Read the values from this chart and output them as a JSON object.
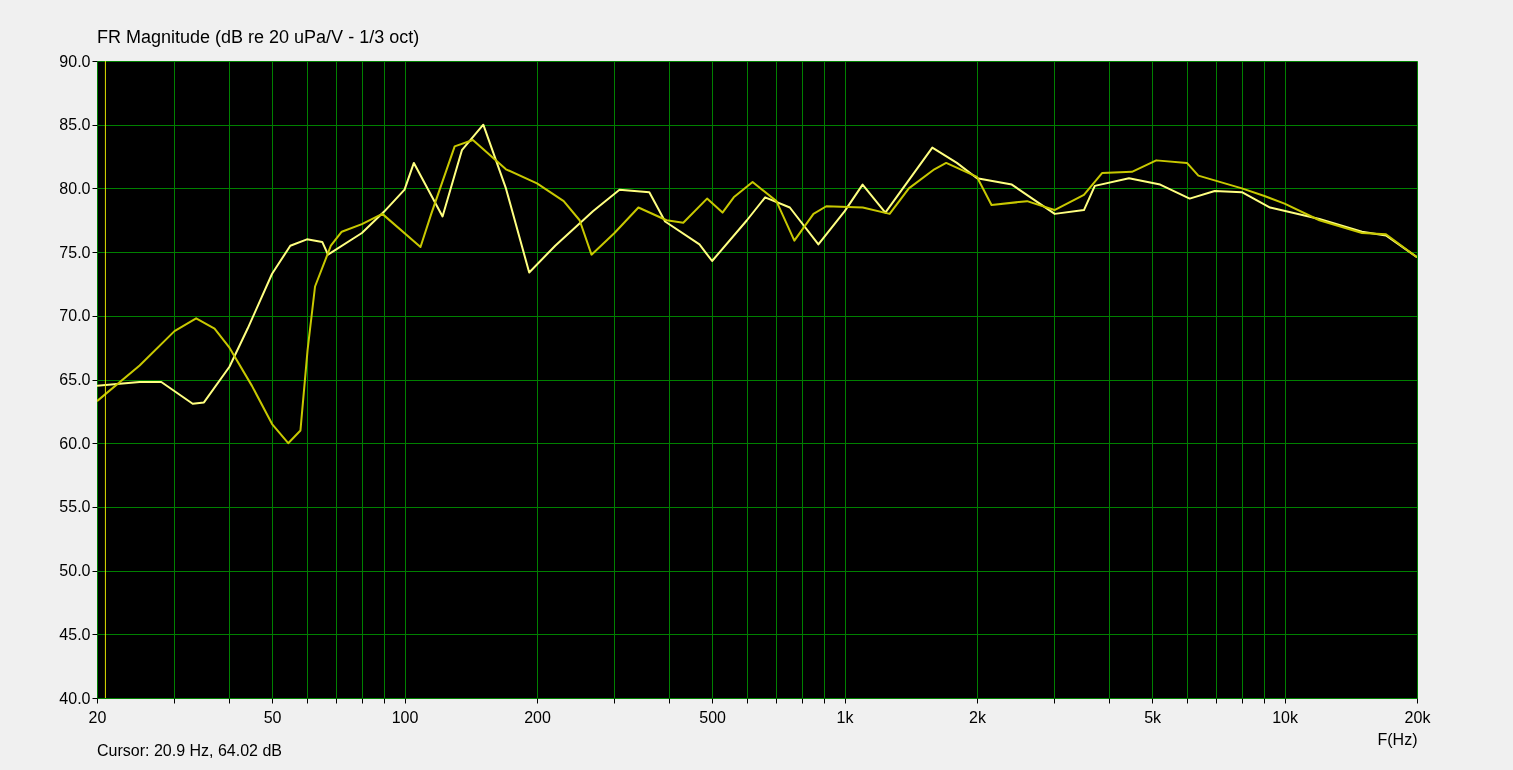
{
  "chart_data": {
    "type": "line",
    "title": "FR Magnitude (dB re 20 uPa/V - 1/3 oct)",
    "xlabel": "F(Hz)",
    "annotations": [
      "Cursor: 20.9 Hz, 64.02 dB"
    ],
    "log": "x",
    "grid": true,
    "legend": false,
    "marker": "none",
    "line_style": "solid",
    "xlim": [
      20,
      20000
    ],
    "xticks": [
      20,
      {
        "value": 30,
        "label": null
      },
      {
        "value": 40,
        "label": null
      },
      50,
      {
        "value": 60,
        "label": null
      },
      {
        "value": 70,
        "label": null
      },
      {
        "value": 80,
        "label": null
      },
      {
        "value": 90,
        "label": null
      },
      100,
      200,
      {
        "value": 300,
        "label": null
      },
      {
        "value": 400,
        "label": null
      },
      500,
      {
        "value": 600,
        "label": null
      },
      {
        "value": 700,
        "label": null
      },
      {
        "value": 800,
        "label": null
      },
      {
        "value": 900,
        "label": null
      },
      {
        "value": 1000,
        "label": "1k"
      },
      {
        "value": 2000,
        "label": "2k"
      },
      {
        "value": 3000,
        "label": null
      },
      {
        "value": 4000,
        "label": null
      },
      {
        "value": 5000,
        "label": "5k"
      },
      {
        "value": 6000,
        "label": null
      },
      {
        "value": 7000,
        "label": null
      },
      {
        "value": 8000,
        "label": null
      },
      {
        "value": 9000,
        "label": null
      },
      {
        "value": 10000,
        "label": "10k"
      },
      {
        "value": 20000,
        "label": "20k"
      }
    ],
    "ylim": [
      40,
      90
    ],
    "yticks": [
      {
        "value": 40,
        "label": "40.0"
      },
      {
        "value": 45,
        "label": "45.0"
      },
      {
        "value": 50,
        "label": "50.0"
      },
      {
        "value": 55,
        "label": "55.0"
      },
      {
        "value": 60,
        "label": "60.0"
      },
      {
        "value": 65,
        "label": "65.0"
      },
      {
        "value": 70,
        "label": "70.0"
      },
      {
        "value": 75,
        "label": "75.0"
      },
      {
        "value": 80,
        "label": "80.0"
      },
      {
        "value": 85,
        "label": "85.0"
      },
      {
        "value": 90,
        "label": "90.0"
      }
    ],
    "ref_lines": [
      {
        "axis": "x",
        "value": 20.9,
        "color": "#e0e000"
      }
    ],
    "series": [
      {
        "color": "#ffff80",
        "x": [
          20,
          25,
          28,
          33,
          35,
          40,
          44,
          50,
          55,
          60,
          65,
          67,
          80,
          90,
          100,
          105,
          122,
          135,
          151,
          170,
          192,
          220,
          268,
          308,
          360,
          391,
          468,
          500,
          600,
          660,
          751,
          872,
          1000,
          1099,
          1238,
          1583,
          1800,
          2000,
          2400,
          3004,
          3500,
          3705,
          4430,
          5216,
          6087,
          6939,
          8000,
          9270,
          12000,
          15000,
          17000,
          20000
        ],
        "values": [
          64.5,
          64.8,
          64.8,
          63.1,
          63.2,
          66.0,
          69.0,
          73.3,
          75.5,
          76.0,
          75.8,
          74.8,
          76.5,
          78.2,
          79.9,
          82.0,
          77.8,
          83.0,
          85.0,
          80.0,
          73.4,
          75.5,
          78.2,
          79.9,
          79.7,
          77.4,
          75.6,
          74.3,
          77.5,
          79.3,
          78.5,
          75.6,
          78.2,
          80.3,
          78.1,
          83.2,
          82.0,
          80.8,
          80.3,
          78.0,
          78.3,
          80.2,
          80.8,
          80.3,
          79.2,
          79.8,
          79.7,
          78.5,
          77.6,
          76.6,
          76.3,
          74.6
        ]
      },
      {
        "color": "#c8c800",
        "x": [
          20,
          25,
          30,
          33.6,
          37,
          40,
          45,
          50,
          54.4,
          58,
          60.2,
          62.6,
          68,
          72,
          80,
          89,
          108.7,
          115,
          130,
          143,
          170,
          200,
          230,
          250,
          266,
          300,
          340,
          394,
          430,
          487,
          528,
          560,
          618,
          700,
          769,
          850,
          909,
          1100,
          1266,
          1400,
          1600,
          1702,
          2000,
          2158,
          2600,
          3000,
          3500,
          3848,
          4500,
          5110,
          6000,
          6370,
          8000,
          9000,
          10000,
          12000,
          15000,
          17000,
          20000
        ],
        "values": [
          63.3,
          66.1,
          68.8,
          69.8,
          69.0,
          67.5,
          64.5,
          61.5,
          60.0,
          61.0,
          67.3,
          72.3,
          75.5,
          76.6,
          77.2,
          78.0,
          75.4,
          78.0,
          83.3,
          83.8,
          81.5,
          80.4,
          79.0,
          77.5,
          74.8,
          76.5,
          78.5,
          77.5,
          77.3,
          79.2,
          78.1,
          79.3,
          80.5,
          79.0,
          75.9,
          78.0,
          78.6,
          78.5,
          78.0,
          80.0,
          81.5,
          82.0,
          80.9,
          78.7,
          79.0,
          78.3,
          79.5,
          81.2,
          81.3,
          82.2,
          82.0,
          81.0,
          80.0,
          79.4,
          78.8,
          77.5,
          76.5,
          76.4,
          74.6
        ]
      }
    ]
  }
}
